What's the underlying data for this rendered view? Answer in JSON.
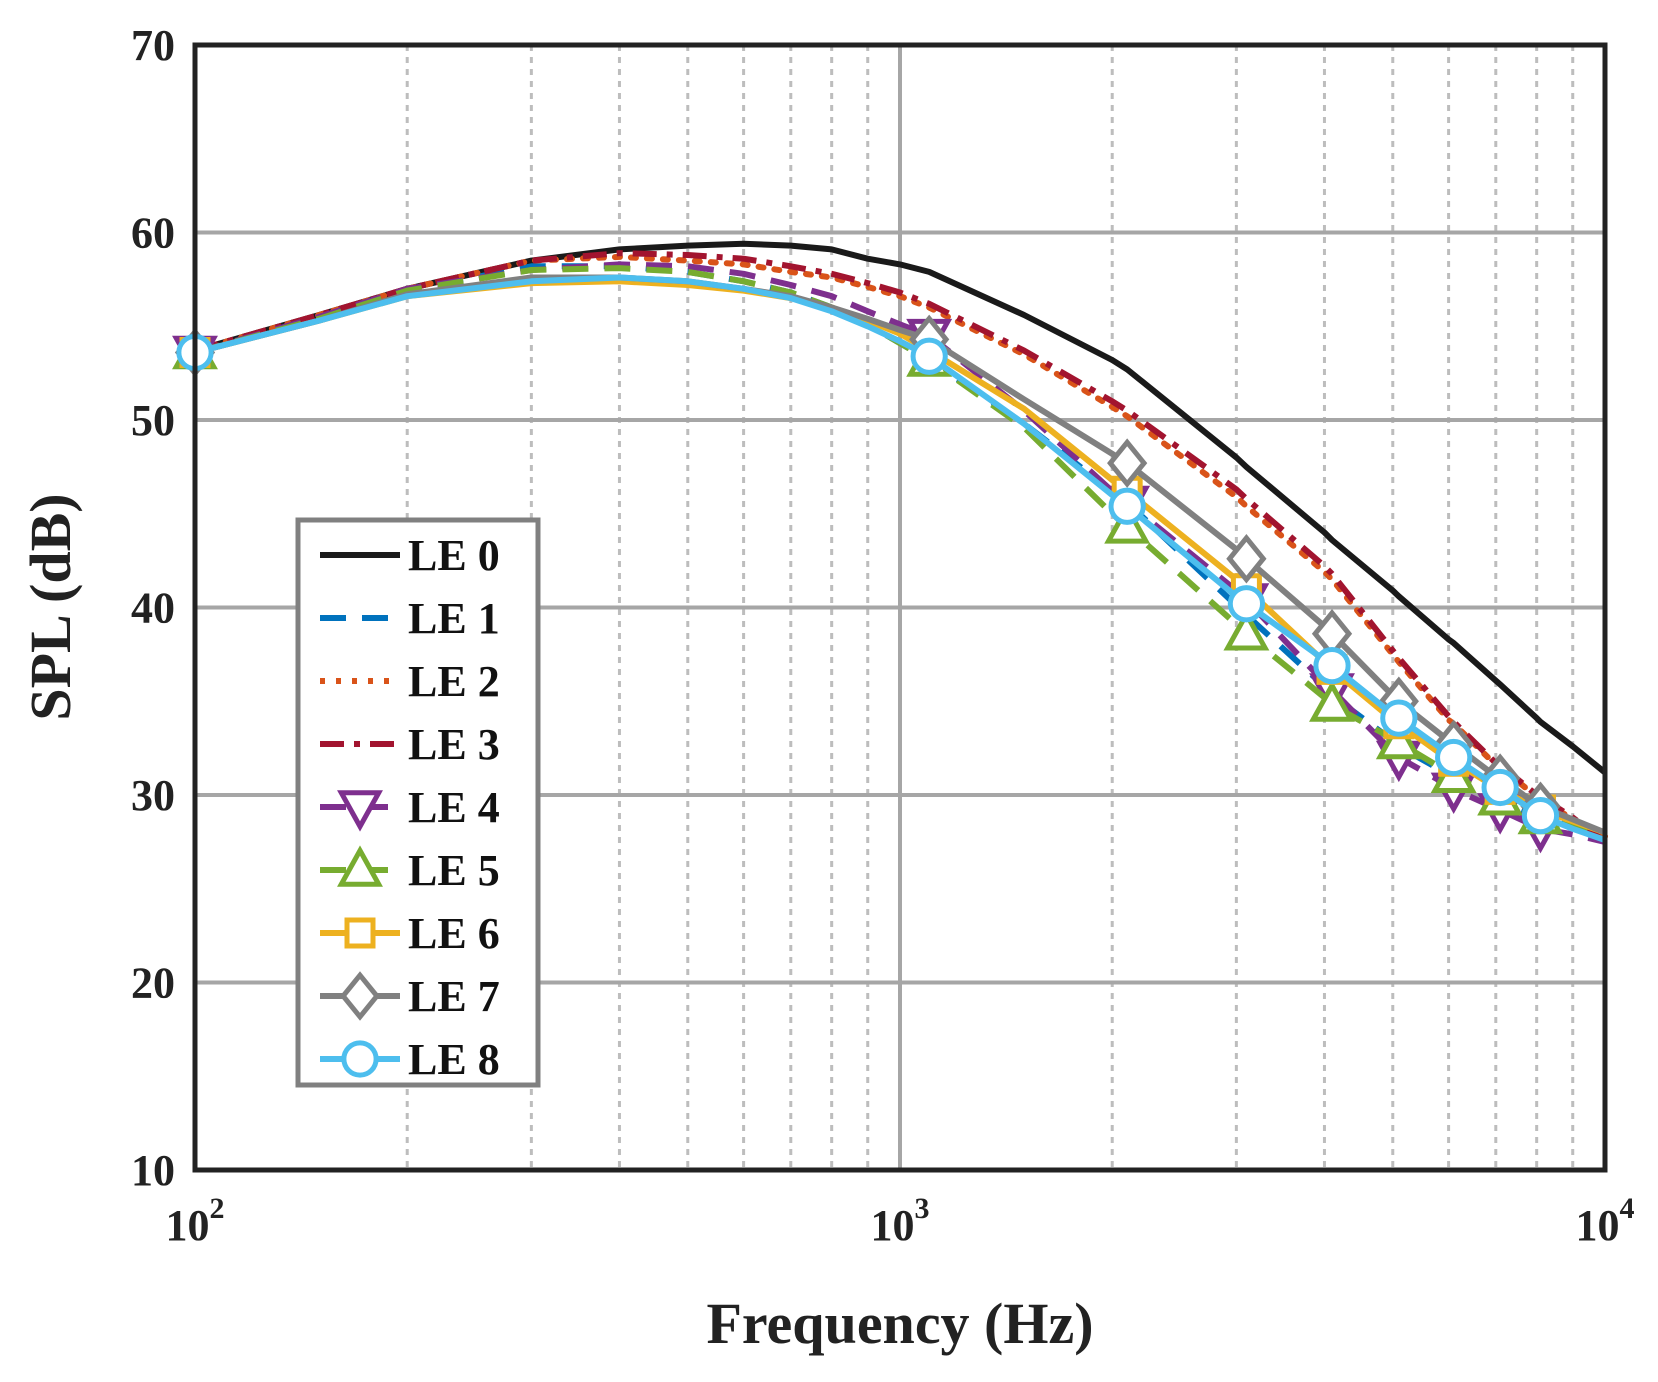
{
  "chart_data": {
    "type": "line",
    "title": "",
    "xlabel": "Frequency (Hz)",
    "ylabel": "SPL (dB)",
    "xscale": "log",
    "xlim": [
      100,
      10000
    ],
    "ylim": [
      10,
      70
    ],
    "xticks": [
      {
        "base": "10",
        "exp": "2",
        "value": 100
      },
      {
        "base": "10",
        "exp": "3",
        "value": 1000
      },
      {
        "base": "10",
        "exp": "4",
        "value": 10000
      }
    ],
    "yticks": [
      "10",
      "20",
      "30",
      "40",
      "50",
      "60",
      "70"
    ],
    "grid": true,
    "legend_position": "left-center",
    "x": [
      100,
      150,
      200,
      300,
      400,
      500,
      600,
      700,
      800,
      900,
      1000,
      1100,
      1500,
      2000,
      2100,
      3000,
      3100,
      4000,
      4100,
      5000,
      5100,
      6000,
      6100,
      7000,
      7100,
      8000,
      8100,
      9000,
      10000
    ],
    "series": [
      {
        "name": "LE 0",
        "color": "#1a1a1a",
        "dash": "solid",
        "marker": "none",
        "values": [
          53.7,
          55.6,
          57.0,
          58.5,
          59.1,
          59.3,
          59.4,
          59.3,
          59.1,
          58.6,
          58.3,
          57.9,
          55.6,
          53.2,
          52.7,
          48.0,
          47.5,
          44.0,
          43.6,
          40.9,
          40.6,
          38.3,
          38.1,
          36.1,
          35.9,
          34.1,
          33.9,
          32.6,
          31.2
        ]
      },
      {
        "name": "LE 1",
        "color": "#0072BD",
        "dash": "dashed",
        "marker": "none",
        "values": [
          53.6,
          55.4,
          56.9,
          58.2,
          58.2,
          57.9,
          57.4,
          56.8,
          56.0,
          55.1,
          54.1,
          53.2,
          49.8,
          46.2,
          45.6,
          40.1,
          39.6,
          35.8,
          35.3,
          32.9,
          32.6,
          31.1,
          30.9,
          29.9,
          29.7,
          28.9,
          28.8,
          28.4,
          27.9
        ]
      },
      {
        "name": "LE 2",
        "color": "#D95319",
        "dash": "dotted",
        "marker": "none",
        "values": [
          53.7,
          55.6,
          57.0,
          58.5,
          58.7,
          58.5,
          58.3,
          57.9,
          57.6,
          57.1,
          56.6,
          56.0,
          53.5,
          50.7,
          50.2,
          45.9,
          45.4,
          41.9,
          41.5,
          37.5,
          37.1,
          34.0,
          33.8,
          31.6,
          31.5,
          29.9,
          29.8,
          28.7,
          27.8
        ]
      },
      {
        "name": "LE 3",
        "color": "#A2142F",
        "dash": "dashdot",
        "marker": "none",
        "values": [
          53.7,
          55.6,
          57.0,
          58.5,
          58.9,
          58.8,
          58.6,
          58.2,
          57.8,
          57.3,
          56.8,
          56.2,
          53.7,
          51.0,
          50.5,
          46.3,
          45.8,
          42.2,
          41.8,
          37.7,
          37.3,
          34.2,
          33.9,
          31.7,
          31.6,
          30.0,
          29.9,
          28.8,
          27.5
        ]
      },
      {
        "name": "LE 4",
        "color": "#7E2F8E",
        "dash": "dashed",
        "marker": "triangle-down",
        "values": [
          53.6,
          55.5,
          57.0,
          58.0,
          58.3,
          58.2,
          57.8,
          57.2,
          56.6,
          55.8,
          55.1,
          54.5,
          50.5,
          46.2,
          45.6,
          40.9,
          40.4,
          36.0,
          35.6,
          32.3,
          32.0,
          30.5,
          30.3,
          29.3,
          29.2,
          28.3,
          28.2,
          27.9,
          27.5
        ]
      },
      {
        "name": "LE 5",
        "color": "#77AC30",
        "dash": "dashed",
        "marker": "triangle-up",
        "values": [
          53.6,
          55.4,
          56.9,
          58.0,
          58.1,
          57.9,
          57.4,
          56.8,
          56.0,
          55.1,
          54.1,
          53.2,
          49.6,
          45.0,
          44.3,
          39.1,
          38.6,
          35.2,
          34.8,
          33.0,
          32.8,
          31.2,
          31.0,
          29.9,
          29.8,
          28.9,
          28.8,
          28.4,
          27.9
        ]
      },
      {
        "name": "LE 6",
        "color": "#EDB120",
        "dash": "solid",
        "marker": "square",
        "values": [
          53.6,
          55.3,
          56.6,
          57.3,
          57.4,
          57.2,
          56.9,
          56.5,
          56.0,
          55.3,
          54.6,
          53.7,
          50.6,
          46.8,
          46.2,
          41.5,
          41.0,
          37.1,
          36.7,
          34.0,
          33.8,
          31.9,
          31.8,
          30.4,
          30.3,
          29.3,
          29.2,
          28.6,
          28.0
        ]
      },
      {
        "name": "LE 7",
        "color": "#808080",
        "dash": "solid",
        "marker": "diamond",
        "values": [
          53.6,
          55.3,
          56.7,
          57.6,
          57.6,
          57.4,
          57.0,
          56.6,
          56.0,
          55.4,
          54.8,
          54.3,
          51.1,
          48.2,
          47.7,
          43.1,
          42.6,
          39.0,
          38.6,
          35.3,
          35.0,
          32.9,
          32.7,
          31.0,
          30.9,
          29.5,
          29.4,
          28.7,
          28.0
        ]
      },
      {
        "name": "LE 8",
        "color": "#4DBEEE",
        "dash": "solid",
        "marker": "circle",
        "values": [
          53.6,
          55.3,
          56.6,
          57.4,
          57.6,
          57.4,
          57.0,
          56.5,
          55.8,
          55.0,
          54.2,
          53.4,
          49.8,
          46.0,
          45.4,
          40.6,
          40.2,
          37.2,
          36.9,
          34.3,
          34.1,
          32.2,
          32.0,
          30.5,
          30.4,
          29.0,
          28.9,
          28.2,
          27.6
        ]
      }
    ]
  }
}
